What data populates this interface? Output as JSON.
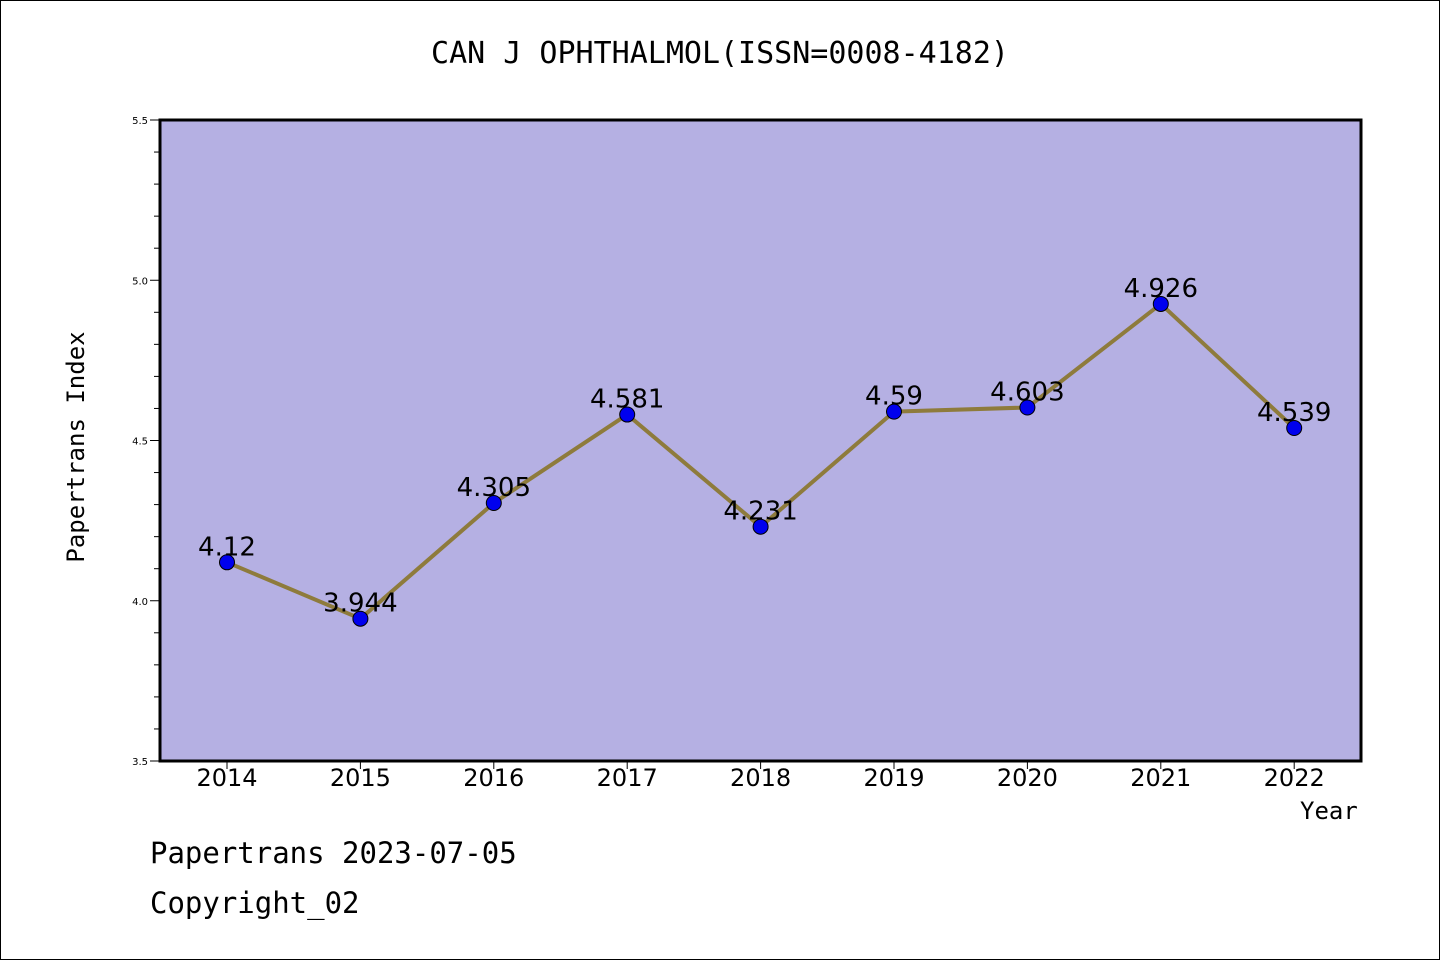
{
  "chart_data": {
    "type": "line",
    "title": "CAN J OPHTHALMOL(ISSN=0008-4182)",
    "xlabel": "Year",
    "ylabel": "Papertrans Index",
    "x": [
      "2014",
      "2015",
      "2016",
      "2017",
      "2018",
      "2019",
      "2020",
      "2021",
      "2022"
    ],
    "series": [
      {
        "values": [
          4.12,
          3.944,
          4.305,
          4.581,
          4.231,
          4.59,
          4.603,
          4.926,
          4.539
        ],
        "labels": [
          "4.12",
          "3.944",
          "4.305",
          "4.581",
          "4.231",
          "4.59",
          "4.603",
          "4.926",
          "4.539"
        ]
      }
    ],
    "ylim": [
      3.5,
      5.5
    ],
    "yticks": [
      "3.5",
      "4.0",
      "4.5",
      "5.0",
      "5.5"
    ],
    "grid": false,
    "colors": {
      "plot_background": "#b5b0e3",
      "line": "#8e7b3c",
      "marker": "#0000ee"
    }
  },
  "footer": {
    "line1": "Papertrans 2023-07-05",
    "line2": "Copyright_02"
  }
}
